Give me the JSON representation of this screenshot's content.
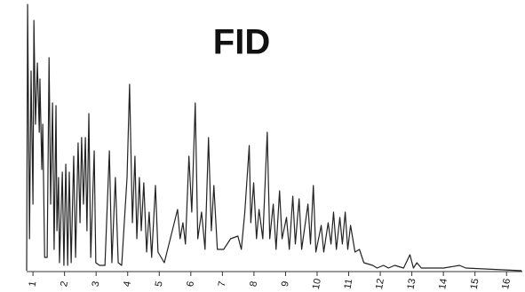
{
  "chart_data": {
    "type": "line",
    "title": "FID",
    "x": [
      0.8,
      0.83,
      0.89,
      0.94,
      1.0,
      1.03,
      1.08,
      1.14,
      1.2,
      1.22,
      1.28,
      1.31,
      1.37,
      1.45,
      1.51,
      1.56,
      1.62,
      1.67,
      1.73,
      1.76,
      1.81,
      1.84,
      1.93,
      1.98,
      2.04,
      2.1,
      2.15,
      2.21,
      2.29,
      2.35,
      2.43,
      2.49,
      2.54,
      2.6,
      2.66,
      2.71,
      2.77,
      2.83,
      2.94,
      2.99,
      3.11,
      3.28,
      3.42,
      3.5,
      3.61,
      3.7,
      3.81,
      3.98,
      4.06,
      4.15,
      4.23,
      4.29,
      4.37,
      4.43,
      4.51,
      4.6,
      4.68,
      4.76,
      4.88,
      4.96,
      5.16,
      5.35,
      5.58,
      5.66,
      5.75,
      5.83,
      5.94,
      6.03,
      6.14,
      6.22,
      6.34,
      6.45,
      6.56,
      6.65,
      6.73,
      6.84,
      7.04,
      7.26,
      7.49,
      7.6,
      7.71,
      7.85,
      7.9,
      7.99,
      8.08,
      8.16,
      8.28,
      8.42,
      8.5,
      8.61,
      8.7,
      8.81,
      8.89,
      9.03,
      9.12,
      9.23,
      9.31,
      9.43,
      9.51,
      9.71,
      9.79,
      9.88,
      9.96,
      10.13,
      10.21,
      10.35,
      10.44,
      10.52,
      10.61,
      10.72,
      10.8,
      10.89,
      10.97,
      11.06,
      11.2,
      11.34,
      11.48,
      11.76,
      11.9,
      12.1,
      12.26,
      12.46,
      12.74,
      12.94,
      13.05,
      13.16,
      13.3,
      14.01,
      14.51,
      14.71,
      16.48
    ],
    "series": [
      {
        "color": "#222222",
        "values": [
          0,
          100,
          12,
          75,
          25,
          94,
          55,
          78,
          52,
          72,
          38,
          55,
          5,
          5,
          80,
          25,
          63,
          8,
          62,
          15,
          35,
          3,
          37,
          2,
          40,
          2,
          37,
          3,
          43,
          5,
          48,
          18,
          50,
          25,
          50,
          15,
          59,
          5,
          45,
          3,
          2,
          2,
          45,
          3,
          35,
          3,
          2,
          35,
          70,
          18,
          43,
          12,
          35,
          15,
          33,
          7,
          22,
          5,
          32,
          7,
          3,
          12,
          23,
          12,
          18,
          10,
          43,
          22,
          63,
          12,
          22,
          8,
          50,
          15,
          32,
          8,
          8,
          12,
          13,
          8,
          22,
          47,
          18,
          33,
          12,
          23,
          12,
          52,
          12,
          25,
          8,
          30,
          12,
          20,
          8,
          28,
          10,
          27,
          8,
          25,
          10,
          32,
          7,
          17,
          7,
          18,
          10,
          22,
          8,
          20,
          10,
          22,
          8,
          17,
          7,
          8,
          3,
          2,
          1,
          2,
          1,
          2,
          1,
          6,
          1,
          3,
          1,
          1,
          2,
          1,
          0
        ]
      }
    ],
    "xlim": [
      0.8,
      16.5
    ],
    "xticks": [
      1,
      2,
      3,
      4,
      5,
      6,
      7,
      8,
      9,
      10,
      11,
      12,
      13,
      14,
      15,
      16
    ],
    "ylim": [
      0,
      100
    ]
  }
}
